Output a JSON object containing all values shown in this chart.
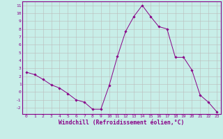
{
  "x": [
    0,
    1,
    2,
    3,
    4,
    5,
    6,
    7,
    8,
    9,
    10,
    11,
    12,
    13,
    14,
    15,
    16,
    17,
    18,
    19,
    20,
    21,
    22,
    23
  ],
  "y": [
    2.5,
    2.2,
    1.6,
    0.9,
    0.5,
    -0.2,
    -1.0,
    -1.3,
    -2.2,
    -2.2,
    0.8,
    4.5,
    7.7,
    9.6,
    11.0,
    9.6,
    8.3,
    8.0,
    4.4,
    4.4,
    2.8,
    -0.4,
    -1.3,
    -2.5
  ],
  "line_color": "#880088",
  "marker": "D",
  "marker_size": 1.8,
  "bg_color": "#c8eee8",
  "grid_color": "#bbbbbb",
  "xlabel": "Windchill (Refroidissement éolien,°C)",
  "xlim": [
    -0.5,
    23.5
  ],
  "ylim": [
    -2.8,
    11.5
  ],
  "yticks": [
    -2,
    -1,
    0,
    1,
    2,
    3,
    4,
    5,
    6,
    7,
    8,
    9,
    10,
    11
  ],
  "xticks": [
    0,
    1,
    2,
    3,
    4,
    5,
    6,
    7,
    8,
    9,
    10,
    11,
    12,
    13,
    14,
    15,
    16,
    17,
    18,
    19,
    20,
    21,
    22,
    23
  ],
  "tick_color": "#880088",
  "tick_fontsize": 4.5,
  "xlabel_fontsize": 5.8,
  "axis_color": "#880088",
  "linewidth": 0.7
}
